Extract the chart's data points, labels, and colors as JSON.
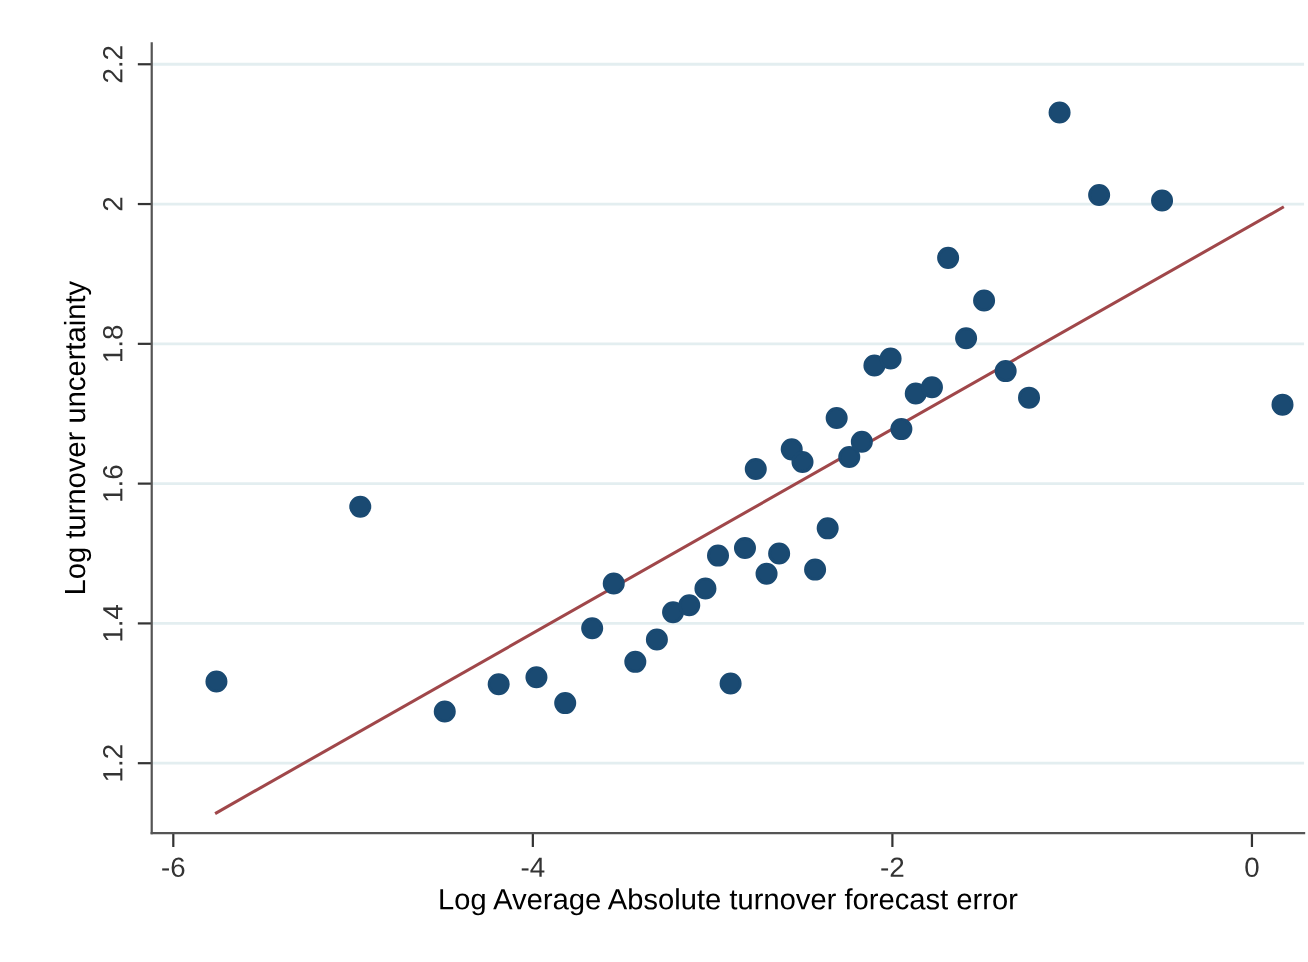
{
  "chart_data": {
    "type": "scatter",
    "xlabel": "Log Average Absolute turnover forecast error",
    "ylabel": "Log turnover uncertainty",
    "xlim": [
      -6.12,
      0.29
    ],
    "ylim": [
      1.1,
      2.23
    ],
    "xticks": [
      -6,
      -4,
      -2,
      0
    ],
    "yticks": [
      1.2,
      1.4,
      1.6,
      1.8,
      2,
      2.2
    ],
    "grid": "y",
    "marker": "circle",
    "series": [
      {
        "color": "#1a4a72",
        "x": [
          -5.76,
          -4.96,
          -4.49,
          -4.19,
          -3.98,
          -3.82,
          -3.67,
          -3.55,
          -3.43,
          -3.31,
          -3.22,
          -3.13,
          -3.04,
          -2.97,
          -2.9,
          -2.82,
          -2.76,
          -2.7,
          -2.63,
          -2.56,
          -2.5,
          -2.43,
          -2.36,
          -2.31,
          -2.24,
          -2.17,
          -2.1,
          -2.01,
          -1.95,
          -1.87,
          -1.78,
          -1.69,
          -1.59,
          -1.49,
          -1.37,
          -1.24,
          -1.07,
          -0.85,
          -0.5,
          0.17
        ],
        "values": [
          1.317,
          1.567,
          1.274,
          1.313,
          1.323,
          1.286,
          1.393,
          1.457,
          1.345,
          1.377,
          1.416,
          1.426,
          1.45,
          1.497,
          1.314,
          1.508,
          1.621,
          1.471,
          1.5,
          1.649,
          1.631,
          1.477,
          1.536,
          1.694,
          1.638,
          1.66,
          1.769,
          1.779,
          1.678,
          1.729,
          1.738,
          1.923,
          1.808,
          1.862,
          1.761,
          1.723,
          2.131,
          2.013,
          2.005,
          1.713
        ]
      },
      {
        "type": "line",
        "color": "#a0474a",
        "marker": "none",
        "x": [
          -5.76,
          0.17
        ],
        "values": [
          1.129,
          1.995
        ]
      }
    ]
  }
}
